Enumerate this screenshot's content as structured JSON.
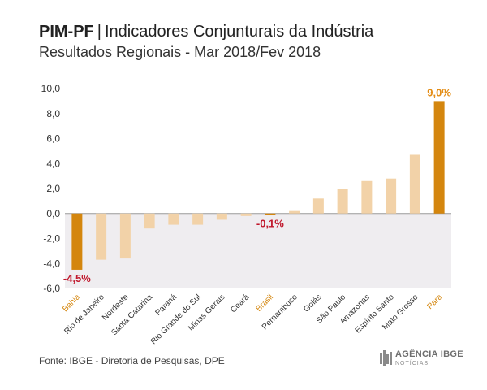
{
  "header": {
    "title_bold": "PIM-PF",
    "title_sep": "|",
    "title_rest": "Indicadores Conjunturais da Indústria",
    "subtitle": "Resultados Regionais - Mar 2018/Fev 2018"
  },
  "chart_data": {
    "type": "bar",
    "title": "PIM-PF | Indicadores Conjunturais da Indústria",
    "subtitle": "Resultados Regionais - Mar 2018/Fev 2018",
    "xlabel": "",
    "ylabel": "",
    "ylim": [
      -6,
      10
    ],
    "yticks": [
      "-6,0",
      "-4,0",
      "-2,0",
      "0,0",
      "2,0",
      "4,0",
      "6,0",
      "8,0",
      "10,0"
    ],
    "categories": [
      "Bahia",
      "Rio de Janeiro",
      "Nordeste",
      "Santa Catarina",
      "Paraná",
      "Rio Grande do Sul",
      "Minas Gerais",
      "Ceará",
      "Brasil",
      "Pernambuco",
      "Goiás",
      "São Paulo",
      "Amazonas",
      "Espírito Santo",
      "Mato Grosso",
      "Pará"
    ],
    "values": [
      -4.5,
      -3.7,
      -3.6,
      -1.2,
      -0.9,
      -0.9,
      -0.5,
      -0.2,
      -0.1,
      0.2,
      1.2,
      2.0,
      2.6,
      2.8,
      4.7,
      9.0
    ],
    "highlighted": [
      "Bahia",
      "Brasil",
      "Pará"
    ],
    "data_labels": [
      {
        "category": "Bahia",
        "text": "-4,5%"
      },
      {
        "category": "Brasil",
        "text": "-0,1%"
      },
      {
        "category": "Pará",
        "text": "9,0%"
      }
    ],
    "colors": {
      "highlight": "#d4860e",
      "normal": "#f2d2a8",
      "negative_label": "#c0172b",
      "positive_label": "#e38b12",
      "negative_band": "#efedf0",
      "axis_text": "#333333"
    }
  },
  "footer": {
    "source": "Fonte: IBGE - Diretoria de Pesquisas, DPE",
    "brand_name": "AGÊNCIA IBGE",
    "brand_sub": "NOTÍCIAS"
  }
}
